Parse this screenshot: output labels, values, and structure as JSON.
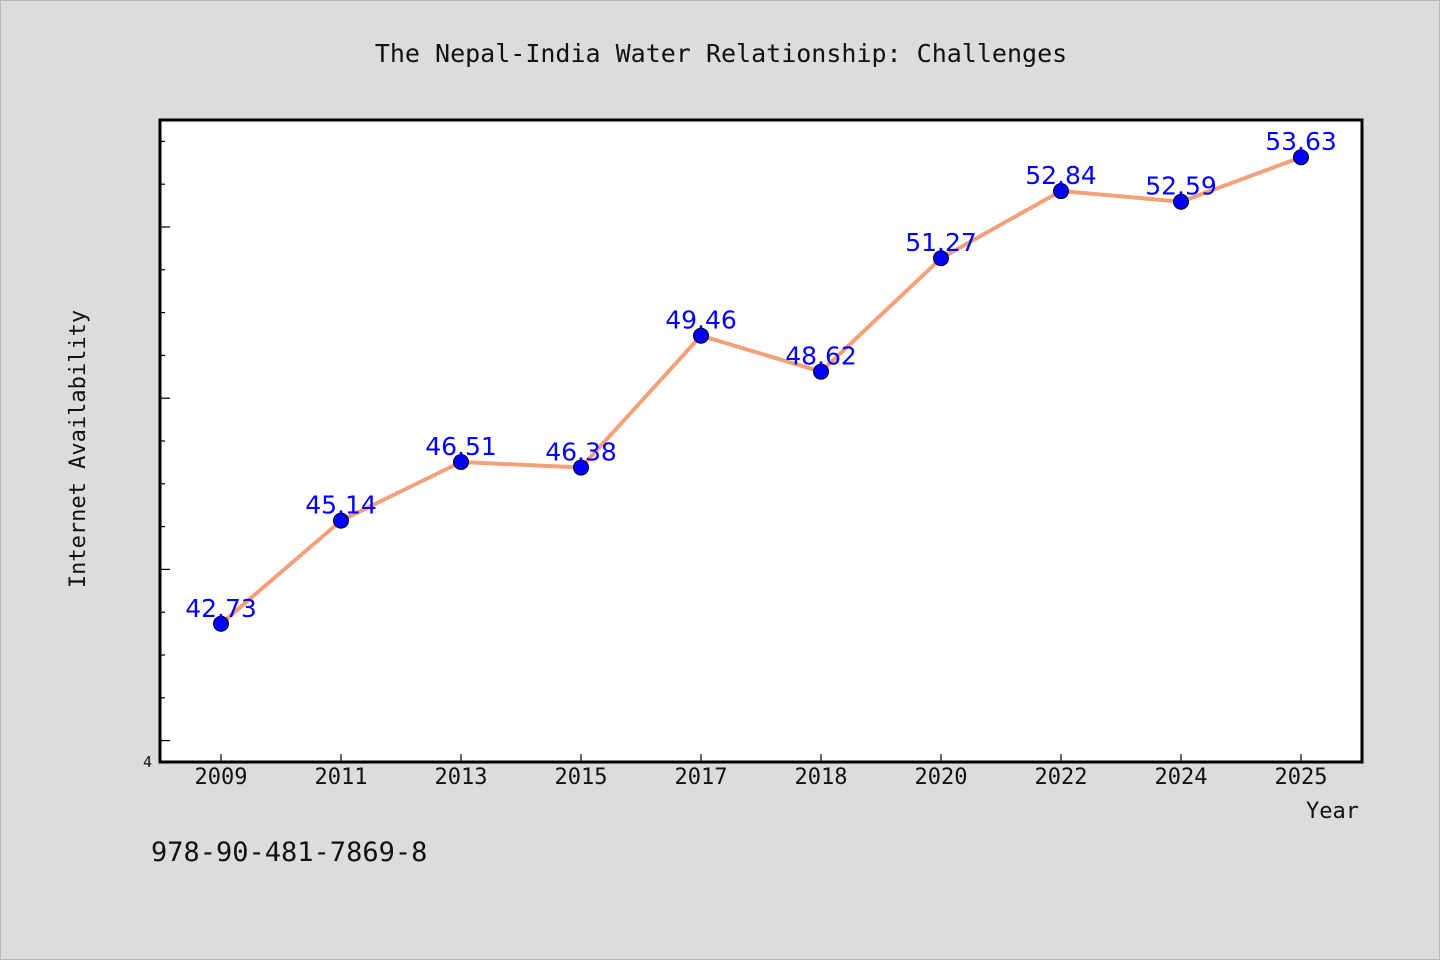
{
  "chart_data": {
    "type": "line",
    "title": "The Nepal-India Water Relationship: Challenges",
    "xlabel": "Year",
    "ylabel": "Internet Availability",
    "categories": [
      "2009",
      "2011",
      "2013",
      "2015",
      "2017",
      "2018",
      "2020",
      "2022",
      "2024",
      "2025"
    ],
    "values": [
      42.73,
      45.14,
      46.51,
      46.38,
      49.46,
      48.62,
      51.27,
      52.84,
      52.59,
      53.63
    ],
    "data_labels": [
      "42.73",
      "45.14",
      "46.51",
      "46.38",
      "49.46",
      "48.62",
      "51.27",
      "52.84",
      "52.59",
      "53.63"
    ],
    "ytick_labels": [
      "4"
    ],
    "ylim": [
      39.5,
      54.5
    ],
    "grid": false,
    "line_color": "#f4a07a",
    "marker_color": "#0000ff",
    "label_color": "#0000ff",
    "background": "#dcdcdc",
    "plot_background": "#ffffff"
  },
  "footer": {
    "isbn": "978-90-481-7869-8"
  }
}
